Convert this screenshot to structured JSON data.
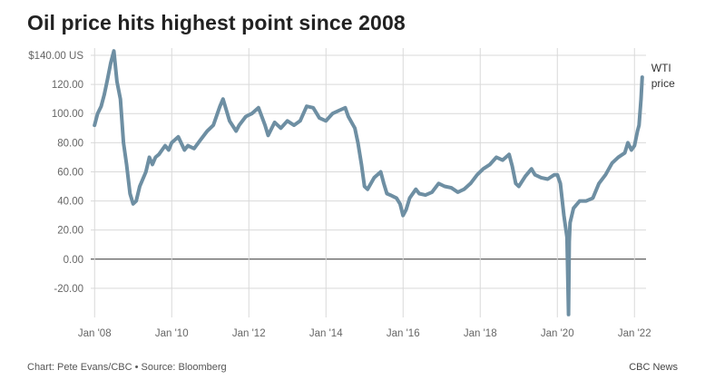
{
  "title": "Oil price hits highest point since 2008",
  "footer": {
    "credit": "Chart: Pete Evans/CBC • Source: Bloomberg",
    "brand": "CBC News"
  },
  "colors": {
    "line": "#6e8fa3",
    "grid": "#d9d9d9",
    "zero": "#333333"
  },
  "chart_data": {
    "type": "line",
    "title": "Oil price hits highest point since 2008",
    "xlabel": "",
    "ylabel": "",
    "grid": true,
    "ylim": [
      -40,
      145
    ],
    "xlim": [
      2007.9,
      2022.3
    ],
    "y_ticks": [
      {
        "value": 140,
        "label": "$140.00 US"
      },
      {
        "value": 120,
        "label": "120.00"
      },
      {
        "value": 100,
        "label": "100.00"
      },
      {
        "value": 80,
        "label": "80.00"
      },
      {
        "value": 60,
        "label": "60.00"
      },
      {
        "value": 40,
        "label": "40.00"
      },
      {
        "value": 20,
        "label": "20.00"
      },
      {
        "value": 0,
        "label": "0.00"
      },
      {
        "value": -20,
        "label": "-20.00"
      }
    ],
    "x_ticks": [
      {
        "value": 2008,
        "label": "Jan '08"
      },
      {
        "value": 2010,
        "label": "Jan '10"
      },
      {
        "value": 2012,
        "label": "Jan '12"
      },
      {
        "value": 2014,
        "label": "Jan '14"
      },
      {
        "value": 2016,
        "label": "Jan '16"
      },
      {
        "value": 2018,
        "label": "Jan '18"
      },
      {
        "value": 2020,
        "label": "Jan '20"
      },
      {
        "value": 2022,
        "label": "Jan '22"
      }
    ],
    "series": [
      {
        "name": "WTI price",
        "label_lines": [
          "WTI",
          "price"
        ],
        "x": [
          2008.0,
          2008.08,
          2008.17,
          2008.25,
          2008.33,
          2008.42,
          2008.5,
          2008.58,
          2008.67,
          2008.75,
          2008.83,
          2008.92,
          2009.0,
          2009.08,
          2009.17,
          2009.25,
          2009.33,
          2009.42,
          2009.5,
          2009.58,
          2009.67,
          2009.75,
          2009.83,
          2009.92,
          2010.0,
          2010.17,
          2010.33,
          2010.42,
          2010.58,
          2010.75,
          2010.92,
          2011.08,
          2011.25,
          2011.33,
          2011.5,
          2011.67,
          2011.75,
          2011.92,
          2012.08,
          2012.25,
          2012.42,
          2012.5,
          2012.67,
          2012.83,
          2013.0,
          2013.17,
          2013.33,
          2013.5,
          2013.67,
          2013.83,
          2014.0,
          2014.17,
          2014.33,
          2014.5,
          2014.58,
          2014.75,
          2014.83,
          2014.92,
          2015.0,
          2015.08,
          2015.25,
          2015.42,
          2015.5,
          2015.58,
          2015.67,
          2015.83,
          2015.92,
          2016.0,
          2016.08,
          2016.17,
          2016.33,
          2016.42,
          2016.58,
          2016.75,
          2016.92,
          2017.08,
          2017.25,
          2017.42,
          2017.58,
          2017.75,
          2017.92,
          2018.08,
          2018.25,
          2018.42,
          2018.58,
          2018.75,
          2018.83,
          2018.92,
          2019.0,
          2019.17,
          2019.33,
          2019.42,
          2019.58,
          2019.75,
          2019.92,
          2020.0,
          2020.08,
          2020.17,
          2020.25,
          2020.29,
          2020.31,
          2020.33,
          2020.42,
          2020.58,
          2020.75,
          2020.92,
          2021.08,
          2021.25,
          2021.42,
          2021.58,
          2021.75,
          2021.83,
          2021.92,
          2022.0,
          2022.08,
          2022.12,
          2022.17,
          2022.2
        ],
        "values": [
          92,
          100,
          105,
          113,
          123,
          135,
          143,
          122,
          110,
          80,
          65,
          45,
          38,
          40,
          50,
          55,
          60,
          70,
          65,
          70,
          72,
          75,
          78,
          75,
          80,
          84,
          75,
          78,
          76,
          82,
          88,
          92,
          105,
          110,
          95,
          88,
          92,
          98,
          100,
          104,
          92,
          85,
          94,
          90,
          95,
          92,
          95,
          105,
          104,
          97,
          95,
          100,
          102,
          104,
          98,
          90,
          80,
          65,
          50,
          48,
          56,
          60,
          52,
          45,
          44,
          42,
          38,
          30,
          34,
          42,
          48,
          45,
          44,
          46,
          52,
          50,
          49,
          46,
          48,
          52,
          58,
          62,
          65,
          70,
          68,
          72,
          64,
          52,
          50,
          57,
          62,
          58,
          56,
          55,
          58,
          58,
          52,
          30,
          15,
          -38,
          12,
          25,
          35,
          40,
          40,
          42,
          52,
          58,
          66,
          70,
          73,
          80,
          75,
          78,
          88,
          92,
          110,
          125
        ]
      }
    ]
  }
}
